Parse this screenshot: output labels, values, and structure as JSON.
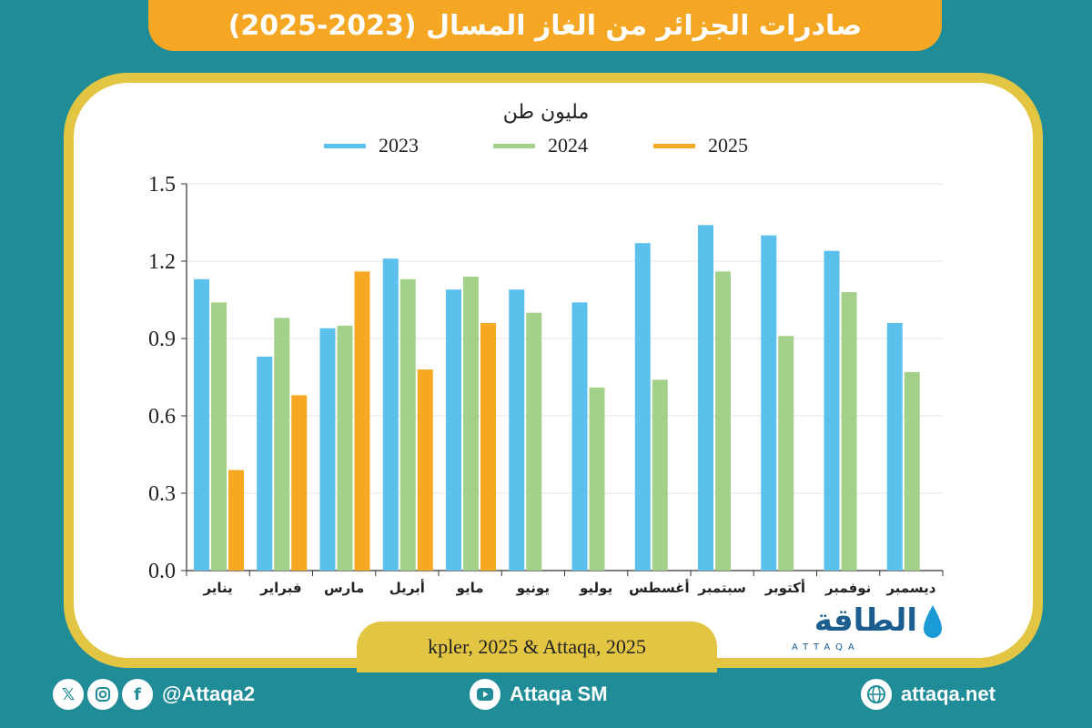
{
  "title": "صادرات الجزائر من الغاز المسال (2023-2025)",
  "source": "kpler, 2025 & Attaqa, 2025",
  "logo": {
    "name": "الطاقة",
    "latin": "ATTAQA"
  },
  "footer": {
    "social_handle": "@Attaqa2",
    "youtube": "Attaqa SM",
    "website": "attaqa.net"
  },
  "colors": {
    "background": "#1f8c98",
    "title_bar": "#f5a623",
    "frame": "#e2c542"
  },
  "chart_data": {
    "type": "bar",
    "title": "صادرات الجزائر من الغاز المسال (2023-2025)",
    "ylabel": "مليون طن",
    "ylim": [
      0,
      1.5
    ],
    "yticks": [
      "0.0",
      "0.3",
      "0.6",
      "0.9",
      "1.2",
      "1.5"
    ],
    "ytick_values": [
      0,
      0.3,
      0.6,
      0.9,
      1.2,
      1.5
    ],
    "grid": true,
    "legend_position": "top",
    "categories": [
      "يناير",
      "فبراير",
      "مارس",
      "أبريل",
      "مايو",
      "يونيو",
      "يوليو",
      "أغسطس",
      "سبتمبر",
      "أكتوبر",
      "نوفمبر",
      "ديسمبر"
    ],
    "series": [
      {
        "name": "2023",
        "color": "#5bc0eb",
        "values": [
          1.13,
          0.83,
          0.94,
          1.21,
          1.09,
          1.09,
          1.04,
          1.27,
          1.34,
          1.3,
          1.24,
          0.96
        ]
      },
      {
        "name": "2024",
        "color": "#a3d18a",
        "values": [
          1.04,
          0.98,
          0.95,
          1.13,
          1.14,
          1.0,
          0.71,
          0.74,
          1.16,
          0.91,
          1.08,
          0.77
        ]
      },
      {
        "name": "2025",
        "color": "#f7a823",
        "values": [
          0.39,
          0.68,
          1.16,
          0.78,
          0.96,
          null,
          null,
          null,
          null,
          null,
          null,
          null
        ]
      }
    ]
  }
}
